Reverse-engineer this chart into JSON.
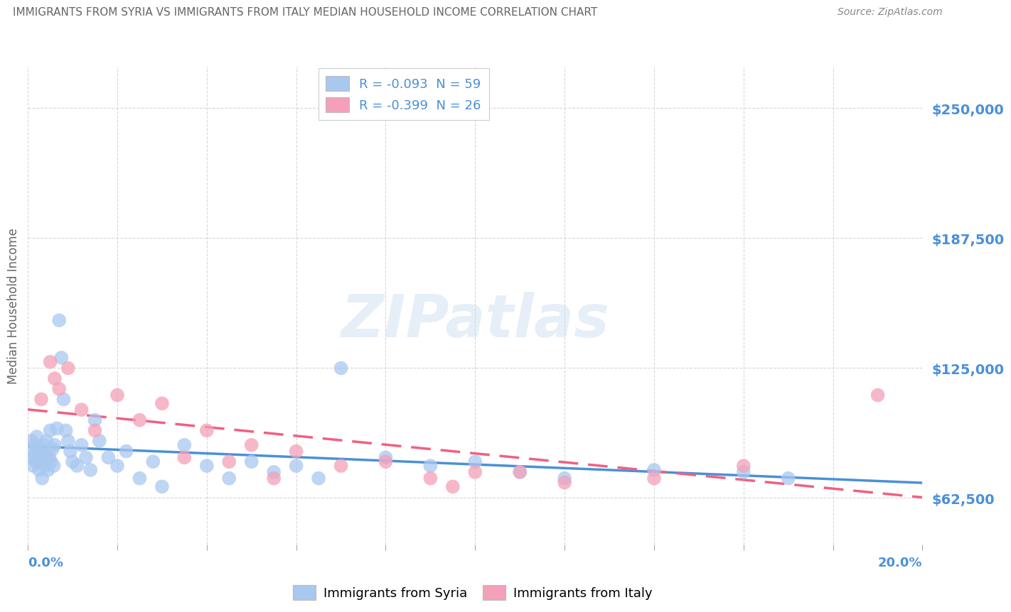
{
  "title": "IMMIGRANTS FROM SYRIA VS IMMIGRANTS FROM ITALY MEDIAN HOUSEHOLD INCOME CORRELATION CHART",
  "source": "Source: ZipAtlas.com",
  "ylabel": "Median Household Income",
  "yticks": [
    62500,
    125000,
    187500,
    250000
  ],
  "ytick_labels": [
    "$62,500",
    "$125,000",
    "$187,500",
    "$250,000"
  ],
  "xlim": [
    0.0,
    20.0
  ],
  "ylim": [
    40000,
    270000
  ],
  "legend_syria": "R = -0.093  N = 59",
  "legend_italy": "R = -0.399  N = 26",
  "legend_label_syria": "Immigrants from Syria",
  "legend_label_italy": "Immigrants from Italy",
  "syria_color": "#a8c8f0",
  "italy_color": "#f4a0b8",
  "syria_line_color": "#4a90d9",
  "italy_line_color": "#f06080",
  "background_color": "#ffffff",
  "grid_color": "#d8d8d8",
  "title_color": "#666666",
  "axis_label_color": "#4a90d9",
  "watermark": "ZIPatlas",
  "syria_x": [
    0.05,
    0.08,
    0.1,
    0.12,
    0.15,
    0.18,
    0.2,
    0.22,
    0.25,
    0.28,
    0.3,
    0.32,
    0.35,
    0.38,
    0.4,
    0.42,
    0.45,
    0.48,
    0.5,
    0.52,
    0.55,
    0.58,
    0.6,
    0.65,
    0.7,
    0.75,
    0.8,
    0.85,
    0.9,
    0.95,
    1.0,
    1.1,
    1.2,
    1.3,
    1.4,
    1.5,
    1.6,
    1.8,
    2.0,
    2.2,
    2.5,
    2.8,
    3.0,
    3.5,
    4.0,
    4.5,
    5.0,
    5.5,
    6.0,
    6.5,
    7.0,
    8.0,
    9.0,
    10.0,
    11.0,
    12.0,
    14.0,
    16.0,
    17.0
  ],
  "syria_y": [
    85000,
    90000,
    82000,
    78000,
    88000,
    80000,
    92000,
    86000,
    76000,
    84000,
    80000,
    72000,
    88000,
    78000,
    83000,
    90000,
    76000,
    82000,
    95000,
    80000,
    86000,
    78000,
    88000,
    96000,
    148000,
    130000,
    110000,
    95000,
    90000,
    85000,
    80000,
    78000,
    88000,
    82000,
    76000,
    100000,
    90000,
    82000,
    78000,
    85000,
    72000,
    80000,
    68000,
    88000,
    78000,
    72000,
    80000,
    75000,
    78000,
    72000,
    125000,
    82000,
    78000,
    80000,
    75000,
    72000,
    76000,
    75000,
    72000
  ],
  "italy_x": [
    0.3,
    0.5,
    0.6,
    0.7,
    0.9,
    1.2,
    1.5,
    2.0,
    2.5,
    3.0,
    3.5,
    4.0,
    4.5,
    5.0,
    5.5,
    6.0,
    7.0,
    8.0,
    9.0,
    9.5,
    10.0,
    11.0,
    12.0,
    14.0,
    16.0,
    19.0
  ],
  "italy_y": [
    110000,
    128000,
    120000,
    115000,
    125000,
    105000,
    95000,
    112000,
    100000,
    108000,
    82000,
    95000,
    80000,
    88000,
    72000,
    85000,
    78000,
    80000,
    72000,
    68000,
    75000,
    75000,
    70000,
    72000,
    78000,
    112000
  ]
}
